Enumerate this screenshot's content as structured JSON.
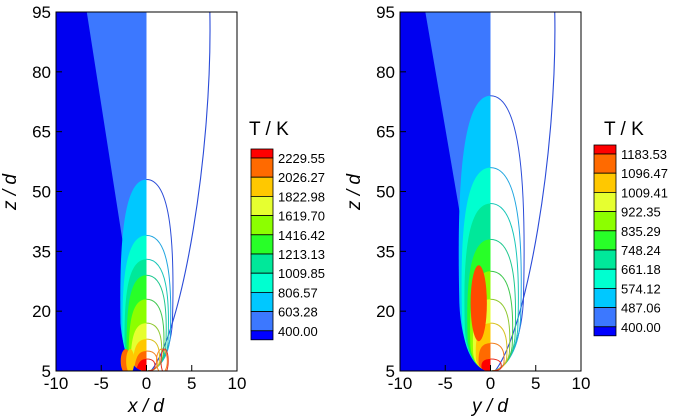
{
  "chart_data": [
    {
      "type": "heatmap",
      "panel": "left",
      "xlabel": "x / d",
      "ylabel": "z / d",
      "x_ticks": [
        "-10",
        "-5",
        "0",
        "5",
        "10"
      ],
      "y_ticks": [
        "5",
        "20",
        "35",
        "50",
        "65",
        "80",
        "95"
      ],
      "xlim": [
        -10,
        10
      ],
      "ylim": [
        5,
        95
      ],
      "colorbar": {
        "title": "T / K",
        "levels": [
          "2229.55",
          "2026.27",
          "1822.98",
          "1619.70",
          "1416.42",
          "1213.13",
          "1009.85",
          "806.57",
          "603.28",
          "400.00"
        ],
        "colors": [
          "#ff0000",
          "#ff6a00",
          "#ffc800",
          "#e6ff30",
          "#8cff00",
          "#28ff28",
          "#00e89a",
          "#00ffd0",
          "#00c8ff",
          "#3c78ff",
          "#0000ff"
        ]
      },
      "contour_tops_z": [
        53,
        39,
        33,
        29,
        23,
        17,
        13,
        10,
        8
      ]
    },
    {
      "type": "heatmap",
      "panel": "right",
      "xlabel": "y / d",
      "ylabel": "z / d",
      "x_ticks": [
        "-10",
        "-5",
        "0",
        "5",
        "10"
      ],
      "y_ticks": [
        "5",
        "20",
        "35",
        "50",
        "65",
        "80",
        "95"
      ],
      "xlim": [
        -10,
        10
      ],
      "ylim": [
        5,
        95
      ],
      "colorbar": {
        "title": "T / K",
        "levels": [
          "1183.53",
          "1096.47",
          "1009.41",
          "922.35",
          "835.29",
          "748.24",
          "661.18",
          "574.12",
          "487.06",
          "400.00"
        ],
        "colors": [
          "#ff0000",
          "#ff6a00",
          "#ffc800",
          "#e6ff30",
          "#8cff00",
          "#28ff28",
          "#00e89a",
          "#00ffd0",
          "#00c8ff",
          "#3c78ff",
          "#0000ff"
        ]
      },
      "contour_tops_z": [
        74,
        56,
        47,
        38,
        30,
        23,
        17,
        12,
        8
      ]
    }
  ]
}
